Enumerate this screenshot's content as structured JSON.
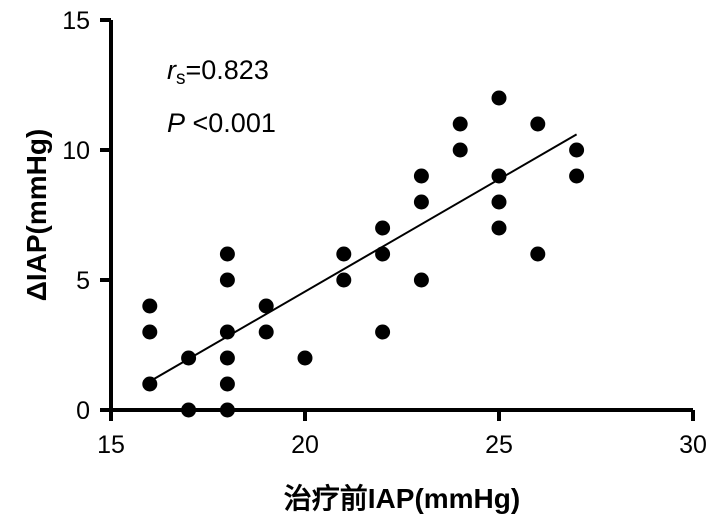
{
  "chart_data": {
    "type": "scatter",
    "xlabel": "治疗前IAP(mmHg)",
    "ylabel": "ΔIAP(mmHg)",
    "xlim": [
      15,
      30
    ],
    "ylim": [
      0,
      15
    ],
    "xticks": [
      "15",
      "20",
      "25",
      "30"
    ],
    "yticks": [
      "0",
      "5",
      "10",
      "15"
    ],
    "grid": false,
    "points": [
      {
        "x": 16,
        "y": 4
      },
      {
        "x": 16,
        "y": 3
      },
      {
        "x": 16,
        "y": 1
      },
      {
        "x": 17,
        "y": 2
      },
      {
        "x": 17,
        "y": 0
      },
      {
        "x": 18,
        "y": 6
      },
      {
        "x": 18,
        "y": 5
      },
      {
        "x": 18,
        "y": 3
      },
      {
        "x": 18,
        "y": 2
      },
      {
        "x": 18,
        "y": 1
      },
      {
        "x": 18,
        "y": 0
      },
      {
        "x": 19,
        "y": 4
      },
      {
        "x": 19,
        "y": 3
      },
      {
        "x": 20,
        "y": 2
      },
      {
        "x": 21,
        "y": 6
      },
      {
        "x": 21,
        "y": 5
      },
      {
        "x": 22,
        "y": 7
      },
      {
        "x": 22,
        "y": 6
      },
      {
        "x": 22,
        "y": 3
      },
      {
        "x": 23,
        "y": 9
      },
      {
        "x": 23,
        "y": 8
      },
      {
        "x": 23,
        "y": 5
      },
      {
        "x": 24,
        "y": 11
      },
      {
        "x": 24,
        "y": 10
      },
      {
        "x": 25,
        "y": 12
      },
      {
        "x": 25,
        "y": 9
      },
      {
        "x": 25,
        "y": 8
      },
      {
        "x": 25,
        "y": 7
      },
      {
        "x": 26,
        "y": 11
      },
      {
        "x": 26,
        "y": 6
      },
      {
        "x": 27,
        "y": 10
      },
      {
        "x": 27,
        "y": 9
      }
    ],
    "fit_line": {
      "x": [
        16,
        27
      ],
      "y": [
        1.1,
        10.6
      ]
    },
    "annotations": {
      "rs_symbol": "r",
      "rs_subscript": "s",
      "rs_value": "=0.823",
      "p_symbol": "P",
      "p_value": " <0.001"
    },
    "colors": {
      "points": "#000000",
      "axes": "#000000"
    }
  }
}
